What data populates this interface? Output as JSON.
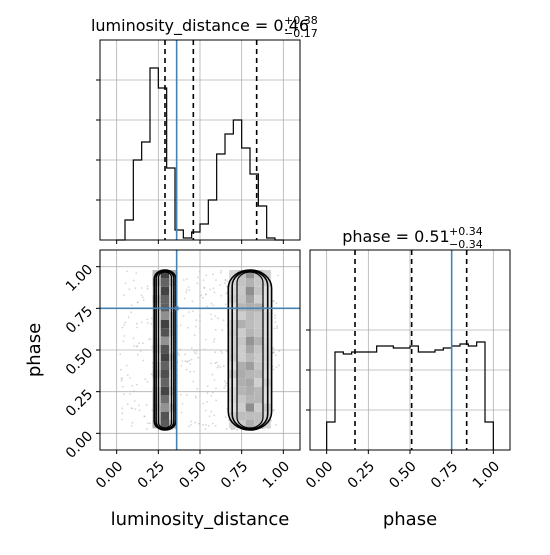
{
  "chart_data": {
    "type": "corner",
    "parameters": [
      "luminosity_distance",
      "phase"
    ],
    "truth": {
      "luminosity_distance": 0.36,
      "phase": 0.75
    },
    "grid": true,
    "panels": [
      {
        "name": "luminosity-distance-marginal",
        "type": "histogram",
        "title_label": "luminosity_distance = 0.46",
        "title_sup": "+0.38",
        "title_sub": "−0.17",
        "xlim": [
          -0.1,
          1.1
        ],
        "ymax": 1.0,
        "ytick_values": [
          0.2,
          0.4,
          0.6,
          0.8
        ],
        "xtick_values": [
          0.0,
          0.25,
          0.5,
          0.75,
          1.0
        ],
        "bin_edges": [
          0.0,
          0.05,
          0.1,
          0.15,
          0.2,
          0.25,
          0.3,
          0.35,
          0.4,
          0.45,
          0.5,
          0.55,
          0.6,
          0.65,
          0.7,
          0.75,
          0.8,
          0.85,
          0.9,
          0.95,
          1.0
        ],
        "counts": [
          0.0,
          0.1,
          0.4,
          0.49,
          0.86,
          0.76,
          0.36,
          0.05,
          0.01,
          0.04,
          0.08,
          0.2,
          0.43,
          0.53,
          0.6,
          0.46,
          0.33,
          0.17,
          0.01,
          0.0
        ],
        "quantile_lines": [
          0.29,
          0.46,
          0.84
        ]
      },
      {
        "name": "phase-marginal",
        "type": "histogram",
        "title_label": "phase = 0.51",
        "title_sup": "+0.34",
        "title_sub": "−0.34",
        "xlim": [
          -0.1,
          1.1
        ],
        "ymax": 1.0,
        "ytick_values": [
          0.2,
          0.4,
          0.6
        ],
        "xtick_values": [
          0.0,
          0.25,
          0.5,
          0.75,
          1.0
        ],
        "xtick_labels": [
          "0.00",
          "0.25",
          "0.50",
          "0.75",
          "1.00"
        ],
        "xlabel": "phase",
        "bin_edges": [
          0.0,
          0.05,
          0.1,
          0.15,
          0.2,
          0.25,
          0.3,
          0.35,
          0.4,
          0.45,
          0.5,
          0.55,
          0.6,
          0.65,
          0.7,
          0.75,
          0.8,
          0.85,
          0.9,
          0.95,
          1.0
        ],
        "counts": [
          0.14,
          0.49,
          0.48,
          0.49,
          0.49,
          0.49,
          0.52,
          0.52,
          0.51,
          0.51,
          0.52,
          0.49,
          0.49,
          0.5,
          0.51,
          0.52,
          0.53,
          0.52,
          0.54,
          0.14
        ],
        "quantile_lines": [
          0.17,
          0.51,
          0.84
        ]
      },
      {
        "name": "joint-density",
        "type": "2d-histogram-contour",
        "xlim": [
          -0.1,
          1.1
        ],
        "ylim": [
          -0.1,
          1.1
        ],
        "xtick_values": [
          0.0,
          0.25,
          0.5,
          0.75,
          1.0
        ],
        "xtick_labels": [
          "0.00",
          "0.25",
          "0.50",
          "0.75",
          "1.00"
        ],
        "ytick_values": [
          0.0,
          0.25,
          0.5,
          0.75,
          1.0
        ],
        "ytick_labels": [
          "0.00",
          "0.25",
          "0.50",
          "0.75",
          "1.00"
        ],
        "xlabel": "luminosity_distance",
        "ylabel": "phase",
        "clusters": [
          {
            "x_center": 0.29,
            "x_halfwidth": 0.065,
            "y_range": [
              0.02,
              0.98
            ]
          },
          {
            "x_center": 0.8,
            "x_halfwidth": 0.13,
            "y_range": [
              0.02,
              0.98
            ]
          }
        ]
      }
    ]
  }
}
